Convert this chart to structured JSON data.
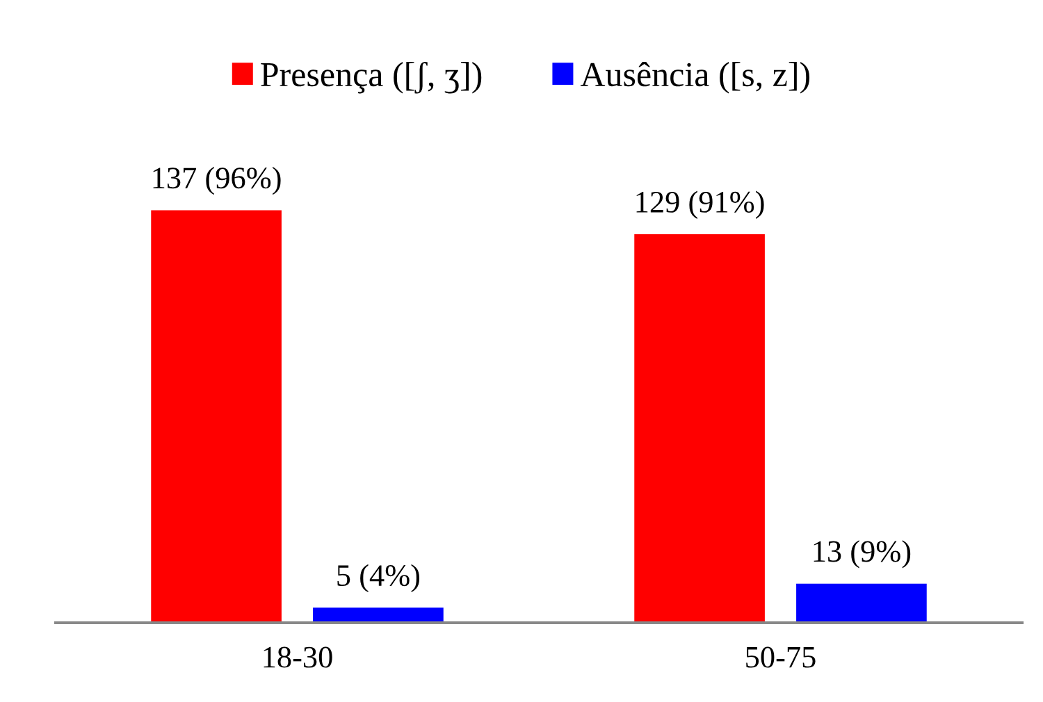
{
  "chart_data": {
    "type": "bar",
    "categories": [
      "18-30",
      "50-75"
    ],
    "series": [
      {
        "name": "Presença ([ʃ, ʒ])",
        "color": "#ff0000",
        "values": [
          137,
          129
        ],
        "value_labels": [
          "137 (96%)",
          "129 (91%)"
        ]
      },
      {
        "name": "Ausência ([s, z])",
        "color": "#0000ff",
        "values": [
          5,
          13
        ],
        "value_labels": [
          "5 (4%)",
          "13 (9%)"
        ]
      }
    ],
    "legend": "top",
    "grid": false
  }
}
